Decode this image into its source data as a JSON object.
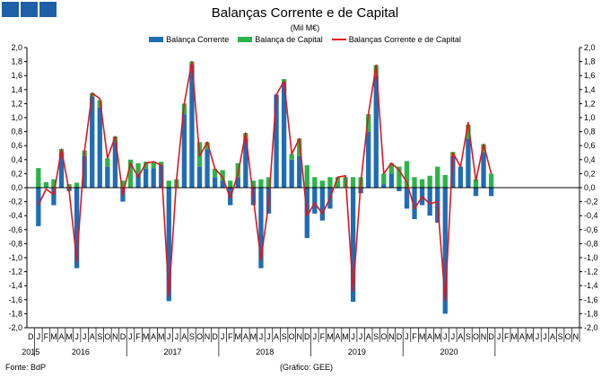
{
  "logo_tiles": 3,
  "chart_data": {
    "type": "bar",
    "title": "Balanças Corrente e de Capital",
    "subtitle": "(Mil M€)",
    "ylim": [
      -2.0,
      2.0
    ],
    "yticks": [
      "2,0",
      "1,8",
      "1,6",
      "1,4",
      "1,2",
      "1,0",
      "0,8",
      "0,6",
      "0,4",
      "0,2",
      "0,0",
      "-0,2",
      "-0,4",
      "-0,6",
      "-0,8",
      "-1,0",
      "-1,2",
      "-1,4",
      "-1,6",
      "-1,8",
      "-2,0"
    ],
    "grid": false,
    "legend_position": "top",
    "stacked": true,
    "month_letters": [
      "D",
      "J",
      "F",
      "M",
      "A",
      "M",
      "J",
      "J",
      "A",
      "S",
      "O",
      "N",
      "D",
      "J",
      "F",
      "M",
      "A",
      "M",
      "J",
      "J",
      "A",
      "S",
      "O",
      "N",
      "D",
      "J",
      "F",
      "M",
      "A",
      "M",
      "J",
      "J",
      "A",
      "S",
      "O",
      "N",
      "D",
      "J",
      "F",
      "M",
      "A",
      "M",
      "J",
      "J",
      "A",
      "S",
      "O",
      "N",
      "D",
      "J",
      "F",
      "M",
      "A",
      "M",
      "J",
      "J",
      "A",
      "S",
      "O",
      "N",
      "D",
      "J",
      "F",
      "M",
      "A",
      "M",
      "J",
      "J",
      "A",
      "S",
      "O",
      "N"
    ],
    "years": [
      {
        "label": "2015",
        "first_month": 0,
        "last_month": 0
      },
      {
        "label": "2016",
        "first_month": 1,
        "last_month": 12
      },
      {
        "label": "2017",
        "first_month": 13,
        "last_month": 24
      },
      {
        "label": "2018",
        "first_month": 25,
        "last_month": 36
      },
      {
        "label": "2019",
        "first_month": 37,
        "last_month": 48
      },
      {
        "label": "2020",
        "first_month": 49,
        "last_month": 60
      }
    ],
    "series": [
      {
        "name": "Balança Corrente",
        "kind": "bar",
        "color": "#1f6db5",
        "values": [
          -0.55,
          0.0,
          -0.25,
          0.5,
          -0.05,
          -1.15,
          0.45,
          1.3,
          1.15,
          0.3,
          0.65,
          -0.2,
          0.0,
          0.2,
          0.27,
          0.28,
          0.32,
          -1.62,
          0.0,
          1.05,
          1.75,
          0.3,
          0.55,
          0.15,
          0.1,
          -0.25,
          0.15,
          0.7,
          -0.25,
          -1.15,
          -0.37,
          1.33,
          1.5,
          0.4,
          0.45,
          -0.72,
          -0.37,
          -0.47,
          -0.3,
          0.0,
          0.0,
          -1.63,
          -0.08,
          0.8,
          1.6,
          0.05,
          0.2,
          -0.05,
          -0.3,
          -0.45,
          -0.25,
          -0.4,
          -0.5,
          -1.8,
          0.45,
          0.3,
          0.7,
          -0.12,
          0.5,
          -0.12
        ]
      },
      {
        "name": "Balança de Capital",
        "kind": "bar",
        "color": "#2bb34a",
        "values": [
          0.28,
          0.08,
          0.12,
          0.05,
          0.05,
          0.07,
          0.08,
          0.05,
          0.1,
          0.12,
          0.08,
          0.1,
          0.4,
          0.15,
          0.1,
          0.08,
          0.05,
          0.1,
          0.12,
          0.15,
          0.05,
          0.35,
          0.1,
          0.12,
          0.15,
          0.1,
          0.2,
          0.08,
          0.1,
          0.12,
          0.15,
          0.0,
          0.05,
          0.08,
          0.25,
          0.32,
          0.15,
          0.1,
          0.15,
          0.15,
          0.15,
          0.15,
          0.15,
          0.25,
          0.15,
          0.15,
          0.15,
          0.3,
          0.38,
          0.15,
          0.12,
          0.17,
          0.3,
          0.18,
          0.06,
          0.0,
          0.2,
          0.12,
          0.12,
          0.2
        ]
      },
      {
        "name": "Balanças Corrente e de Capital",
        "kind": "line",
        "color": "#e3141b",
        "values": [
          -0.25,
          -0.02,
          -0.1,
          0.55,
          -0.05,
          -1.05,
          0.52,
          1.35,
          1.27,
          0.42,
          0.73,
          -0.1,
          0.35,
          0.15,
          0.35,
          0.37,
          0.32,
          -1.55,
          0.12,
          1.2,
          1.8,
          0.45,
          0.65,
          0.27,
          0.15,
          -0.15,
          0.2,
          0.78,
          -0.15,
          -1.03,
          -0.22,
          1.33,
          1.52,
          0.48,
          0.7,
          -0.4,
          -0.22,
          -0.37,
          -0.15,
          0.15,
          0.17,
          -1.48,
          0.07,
          1.05,
          1.75,
          0.2,
          0.35,
          0.25,
          0.08,
          -0.3,
          -0.13,
          -0.23,
          -0.2,
          -1.62,
          0.5,
          0.3,
          0.93,
          0.1,
          0.62,
          0.2
        ]
      }
    ]
  },
  "footer": {
    "source": "Fonte: BdP",
    "credit": "(Gráfico: GEE)"
  }
}
